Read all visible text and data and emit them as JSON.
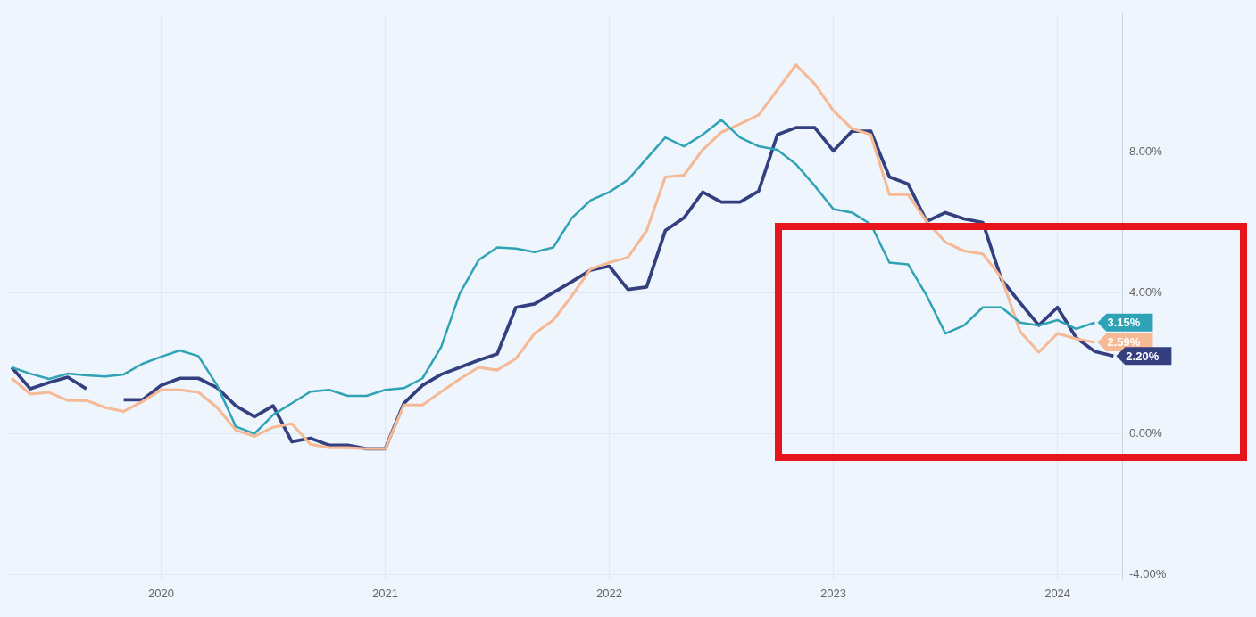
{
  "chart_data": {
    "type": "line",
    "x": [
      "2019-05",
      "2019-06",
      "2019-07",
      "2019-08",
      "2019-09",
      "2019-10",
      "2019-11",
      "2019-12",
      "2020-01",
      "2020-02",
      "2020-03",
      "2020-04",
      "2020-05",
      "2020-06",
      "2020-07",
      "2020-08",
      "2020-09",
      "2020-10",
      "2020-11",
      "2020-12",
      "2021-01",
      "2021-02",
      "2021-03",
      "2021-04",
      "2021-05",
      "2021-06",
      "2021-07",
      "2021-08",
      "2021-09",
      "2021-10",
      "2021-11",
      "2021-12",
      "2022-01",
      "2022-02",
      "2022-03",
      "2022-04",
      "2022-05",
      "2022-06",
      "2022-07",
      "2022-08",
      "2022-09",
      "2022-10",
      "2022-11",
      "2022-12",
      "2023-01",
      "2023-02",
      "2023-03",
      "2023-04",
      "2023-05",
      "2023-06",
      "2023-07",
      "2023-08",
      "2023-09",
      "2023-10",
      "2023-11",
      "2023-12",
      "2024-01",
      "2024-02",
      "2024-03",
      "2024-04"
    ],
    "series": [
      {
        "color": "#2fa3b5",
        "values": [
          1.88,
          1.7,
          1.55,
          1.7,
          1.65,
          1.62,
          1.68,
          1.98,
          2.18,
          2.36,
          2.2,
          1.37,
          0.2,
          0,
          0.53,
          0.86,
          1.19,
          1.24,
          1.07,
          1.07,
          1.24,
          1.29,
          1.57,
          2.46,
          3.98,
          4.92,
          5.28,
          5.25,
          5.15,
          5.28,
          6.12,
          6.62,
          6.85,
          7.2,
          7.8,
          8.4,
          8.15,
          8.48,
          8.9,
          8.4,
          8.15,
          8.05,
          7.64,
          7.03,
          6.37,
          6.27,
          5.94,
          4.85,
          4.8,
          3.91,
          2.84,
          3.07,
          3.58,
          3.58,
          3.15,
          3.07,
          3.22,
          2.97,
          3.15,
          null
        ],
        "value_labels": [
          null,
          null,
          null,
          null,
          null,
          null,
          null,
          null,
          null,
          null,
          null,
          null,
          null,
          null,
          null,
          null,
          null,
          null,
          null,
          null,
          null,
          null,
          null,
          null,
          null,
          null,
          null,
          null,
          null,
          null,
          null,
          null,
          null,
          null,
          null,
          null,
          null,
          null,
          null,
          null,
          null,
          null,
          null,
          null,
          null,
          null,
          null,
          null,
          null,
          null,
          null,
          null,
          null,
          null,
          null,
          null,
          null,
          null,
          "3.15%",
          null
        ]
      },
      {
        "color": "#f5b995",
        "values": [
          1.57,
          1.12,
          1.17,
          0.94,
          0.94,
          0.74,
          0.63,
          0.91,
          1.24,
          1.24,
          1.17,
          0.74,
          0.1,
          -0.08,
          0.18,
          0.28,
          -0.3,
          -0.4,
          -0.4,
          -0.43,
          -0.43,
          0.81,
          0.81,
          1.19,
          1.55,
          1.88,
          1.8,
          2.13,
          2.84,
          3.22,
          3.91,
          4.67,
          4.85,
          5.0,
          5.76,
          7.28,
          7.33,
          8.05,
          8.55,
          8.78,
          9.04,
          9.75,
          10.46,
          9.92,
          9.16,
          8.65,
          8.48,
          6.78,
          6.78,
          6.02,
          5.43,
          5.18,
          5.1,
          4.42,
          2.89,
          2.31,
          2.84,
          2.69,
          2.59,
          null
        ],
        "value_labels": [
          null,
          null,
          null,
          null,
          null,
          null,
          null,
          null,
          null,
          null,
          null,
          null,
          null,
          null,
          null,
          null,
          null,
          null,
          null,
          null,
          null,
          null,
          null,
          null,
          null,
          null,
          null,
          null,
          null,
          null,
          null,
          null,
          null,
          null,
          null,
          null,
          null,
          null,
          null,
          null,
          null,
          null,
          null,
          null,
          null,
          null,
          null,
          null,
          null,
          null,
          null,
          null,
          null,
          null,
          null,
          null,
          null,
          null,
          "2.59%",
          null
        ]
      },
      {
        "color": "#343f80",
        "values": [
          1.88,
          1.27,
          1.45,
          1.6,
          1.27,
          null,
          0.96,
          0.96,
          1.37,
          1.57,
          1.57,
          1.3,
          0.79,
          0.48,
          0.79,
          -0.23,
          -0.13,
          -0.33,
          -0.33,
          -0.43,
          -0.43,
          0.86,
          1.37,
          1.68,
          1.88,
          2.08,
          2.26,
          3.58,
          3.68,
          4.0,
          4.31,
          4.64,
          4.75,
          4.09,
          4.16,
          5.76,
          6.12,
          6.85,
          6.57,
          6.57,
          6.88,
          8.48,
          8.68,
          8.68,
          8.02,
          8.58,
          8.58,
          7.28,
          7.08,
          6.02,
          6.27,
          6.09,
          5.99,
          4.37,
          3.71,
          3.07,
          3.58,
          2.72,
          2.33,
          2.2
        ],
        "value_labels": [
          null,
          null,
          null,
          null,
          null,
          null,
          null,
          null,
          null,
          null,
          null,
          null,
          null,
          null,
          null,
          null,
          null,
          null,
          null,
          null,
          null,
          null,
          null,
          null,
          null,
          null,
          null,
          null,
          null,
          null,
          null,
          null,
          null,
          null,
          null,
          null,
          null,
          null,
          null,
          null,
          null,
          null,
          null,
          null,
          null,
          null,
          null,
          null,
          null,
          null,
          null,
          null,
          null,
          null,
          null,
          null,
          null,
          null,
          null,
          "2.20%"
        ]
      }
    ],
    "xlim": [
      "2019-04-24",
      "2024-04-15"
    ],
    "xticks": [
      "2020",
      "2021",
      "2022",
      "2023",
      "2024"
    ],
    "ylim": [
      -4.15,
      11.9
    ],
    "yticks": [
      {
        "value": -4,
        "label": "-4.00%"
      },
      {
        "value": 0,
        "label": "0.00%"
      },
      {
        "value": 4,
        "label": "4.00%"
      },
      {
        "value": 8,
        "label": "8.00%"
      }
    ],
    "grid": true,
    "marker": "none",
    "line_style": "solid"
  }
}
